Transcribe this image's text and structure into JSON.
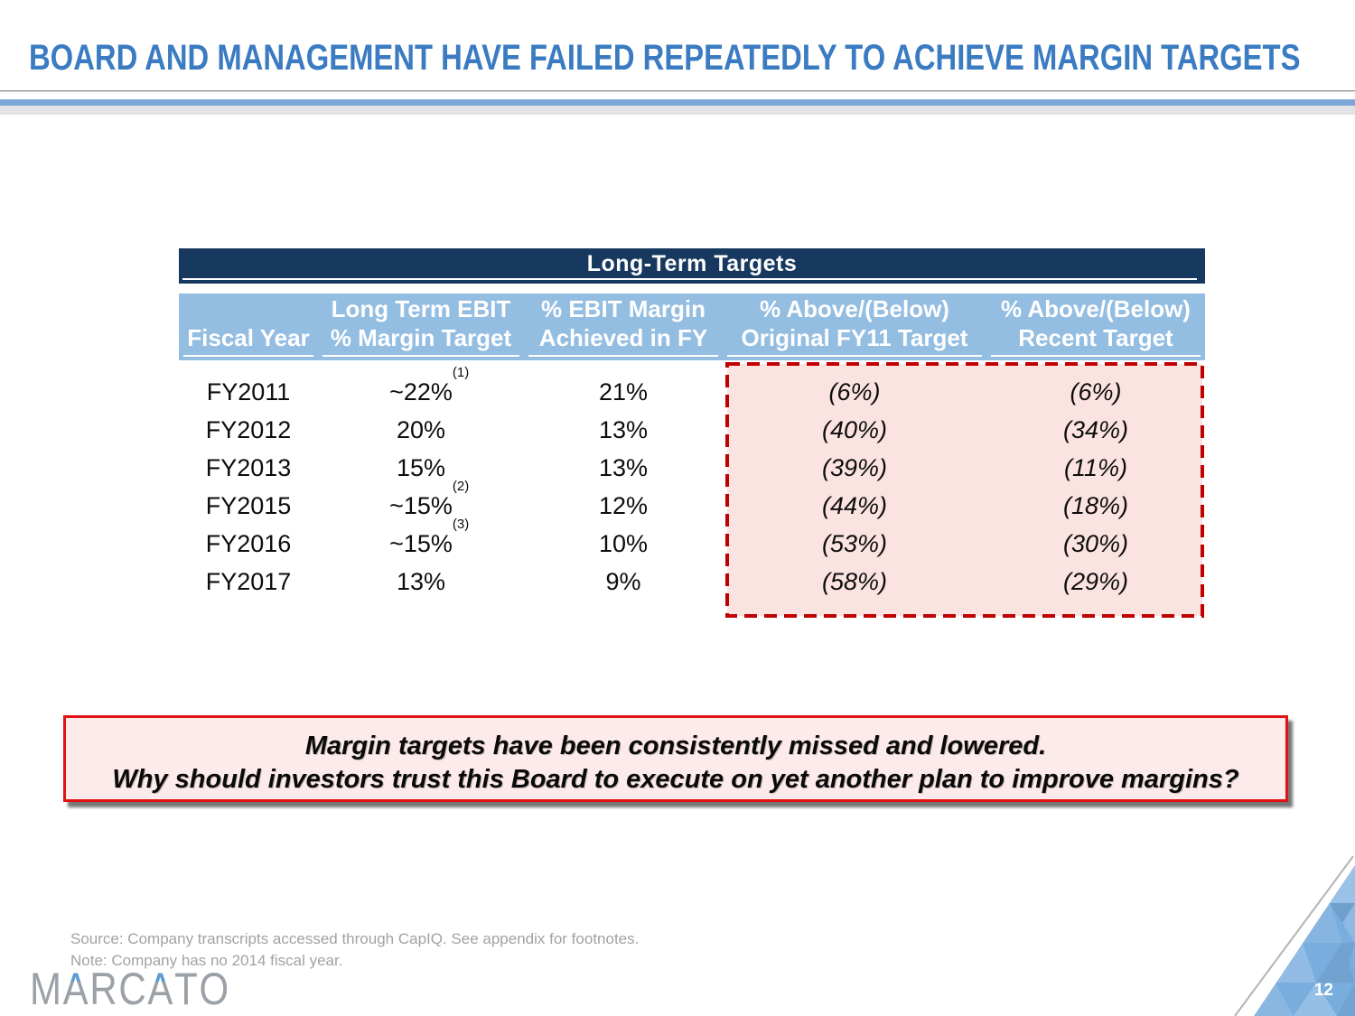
{
  "title": "BOARD AND MANAGEMENT HAVE FAILED REPEATEDLY TO ACHIEVE MARGIN TARGETS",
  "table": {
    "band_title": "Long-Term Targets",
    "columns": [
      {
        "line1": "",
        "line2": "Fiscal Year"
      },
      {
        "line1": "Long Term EBIT",
        "line2": "% Margin Target"
      },
      {
        "line1": "% EBIT Margin",
        "line2": "Achieved in FY"
      },
      {
        "line1": "% Above/(Below)",
        "line2": "Original FY11 Target"
      },
      {
        "line1": "% Above/(Below)",
        "line2": "Recent Target"
      }
    ],
    "rows": [
      {
        "fiscal_year": "FY2011",
        "margin_target": "~22%",
        "footnote": "(1)",
        "achieved": "21%",
        "vs_original": "(6%)",
        "vs_recent": "(6%)"
      },
      {
        "fiscal_year": "FY2012",
        "margin_target": "20%",
        "footnote": "",
        "achieved": "13%",
        "vs_original": "(40%)",
        "vs_recent": "(34%)"
      },
      {
        "fiscal_year": "FY2013",
        "margin_target": "15%",
        "footnote": "",
        "achieved": "13%",
        "vs_original": "(39%)",
        "vs_recent": "(11%)"
      },
      {
        "fiscal_year": "FY2015",
        "margin_target": "~15%",
        "footnote": "(2)",
        "achieved": "12%",
        "vs_original": "(44%)",
        "vs_recent": "(18%)"
      },
      {
        "fiscal_year": "FY2016",
        "margin_target": "~15%",
        "footnote": "(3)",
        "achieved": "10%",
        "vs_original": "(53%)",
        "vs_recent": "(30%)"
      },
      {
        "fiscal_year": "FY2017",
        "margin_target": "13%",
        "footnote": "",
        "achieved": "9%",
        "vs_original": "(58%)",
        "vs_recent": "(29%)"
      }
    ]
  },
  "chart_data": {
    "type": "table",
    "title": "Long-Term Targets",
    "columns": [
      "Fiscal Year",
      "Long Term EBIT % Margin Target",
      "% EBIT Margin Achieved in FY",
      "% Above/(Below) Original FY11 Target",
      "% Above/(Below) Recent Target"
    ],
    "rows": [
      [
        "FY2011",
        "~22% (1)",
        "21%",
        "(6%)",
        "(6%)"
      ],
      [
        "FY2012",
        "20%",
        "13%",
        "(40%)",
        "(34%)"
      ],
      [
        "FY2013",
        "15%",
        "13%",
        "(39%)",
        "(11%)"
      ],
      [
        "FY2015",
        "~15% (2)",
        "12%",
        "(44%)",
        "(18%)"
      ],
      [
        "FY2016",
        "~15% (3)",
        "10%",
        "(53%)",
        "(30%)"
      ],
      [
        "FY2017",
        "13%",
        "9%",
        "(58%)",
        "(29%)"
      ]
    ]
  },
  "callout": {
    "line1": "Margin targets have been consistently missed and lowered.",
    "line2": "Why should investors trust this Board to execute on yet another plan to improve margins?"
  },
  "footer": {
    "source": "Source: Company transcripts accessed through CapIQ. See appendix for footnotes.",
    "note": "Note: Company has no 2014 fiscal year.",
    "logo_text": "MARCATO",
    "page_number": "12"
  },
  "colors": {
    "title_blue": "#3A7BC2",
    "navy": "#17395F",
    "header_blue": "#93BDE1",
    "separator_blue": "#7AA7D8",
    "dash_red": "#C00000",
    "pink_fill": "#FBE3E2",
    "callout_border": "#E01212",
    "callout_fill": "#FDEAEA",
    "logo_gray": "#9BA1A7",
    "logo_blue": "#5B9BD5"
  }
}
